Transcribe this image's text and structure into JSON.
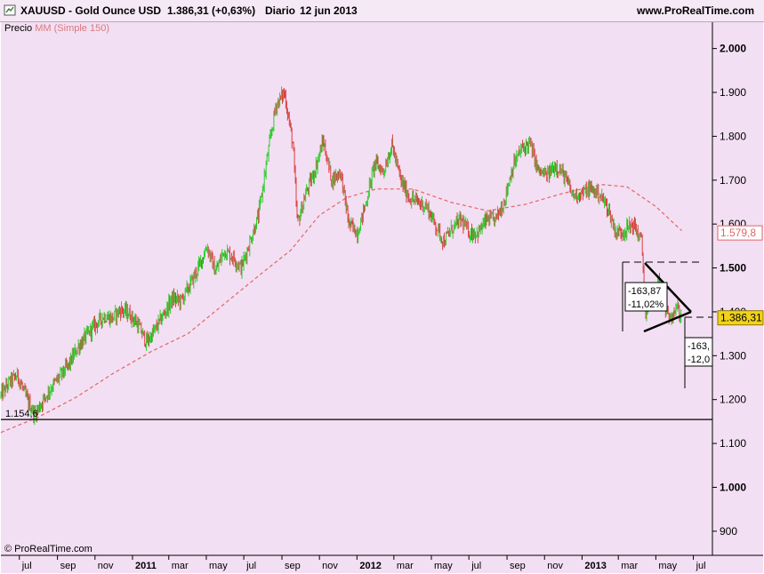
{
  "header": {
    "symbol_line": "XAUUSD - Gold Ounce USD",
    "price_change": "1.386,31 (+0,63%)",
    "period": "Diario",
    "date": "12 jun 2013",
    "site": "www.ProRealTime.com"
  },
  "legend": {
    "price_label": "Precio",
    "ma_label": "MM (Simple 150)"
  },
  "copyright": "© ProRealTime.com",
  "colors": {
    "background": "#f3dff3",
    "up_candle": "#2ecc2e",
    "down_candle": "#d94040",
    "moving_average": "#e06666",
    "price_badge": "#f2d21a",
    "ma_badge_text": "#e06666"
  },
  "chart_data": {
    "type": "line",
    "ylim": [
      845,
      2060
    ],
    "yticks": [
      {
        "value": 2000,
        "label": "2.000",
        "bold": true
      },
      {
        "value": 1900,
        "label": "1.900",
        "bold": false
      },
      {
        "value": 1800,
        "label": "1.800",
        "bold": false
      },
      {
        "value": 1700,
        "label": "1.700",
        "bold": false
      },
      {
        "value": 1600,
        "label": "1.600",
        "bold": false
      },
      {
        "value": 1500,
        "label": "1.500",
        "bold": true
      },
      {
        "value": 1400,
        "label": "1.400",
        "bold": false
      },
      {
        "value": 1300,
        "label": "1.300",
        "bold": false
      },
      {
        "value": 1200,
        "label": "1.200",
        "bold": false
      },
      {
        "value": 1100,
        "label": "1.100",
        "bold": false
      },
      {
        "value": 1000,
        "label": "1.000",
        "bold": true
      },
      {
        "value": 900,
        "label": "900",
        "bold": false
      }
    ],
    "xrange": [
      "2010-06-01",
      "2013-08-01"
    ],
    "xticks": [
      {
        "date": "2010-07-01",
        "label": "jul",
        "bold": false
      },
      {
        "date": "2010-09-01",
        "label": "sep",
        "bold": false
      },
      {
        "date": "2010-11-01",
        "label": "nov",
        "bold": false
      },
      {
        "date": "2011-01-01",
        "label": "2011",
        "bold": true
      },
      {
        "date": "2011-03-01",
        "label": "mar",
        "bold": false
      },
      {
        "date": "2011-05-01",
        "label": "may",
        "bold": false
      },
      {
        "date": "2011-07-01",
        "label": "jul",
        "bold": false
      },
      {
        "date": "2011-09-01",
        "label": "sep",
        "bold": false
      },
      {
        "date": "2011-11-01",
        "label": "nov",
        "bold": false
      },
      {
        "date": "2012-01-01",
        "label": "2012",
        "bold": true
      },
      {
        "date": "2012-03-01",
        "label": "mar",
        "bold": false
      },
      {
        "date": "2012-05-01",
        "label": "may",
        "bold": false
      },
      {
        "date": "2012-07-01",
        "label": "jul",
        "bold": false
      },
      {
        "date": "2012-09-01",
        "label": "sep",
        "bold": false
      },
      {
        "date": "2012-11-01",
        "label": "nov",
        "bold": false
      },
      {
        "date": "2013-01-01",
        "label": "2013",
        "bold": true
      },
      {
        "date": "2013-03-01",
        "label": "mar",
        "bold": false
      },
      {
        "date": "2013-05-01",
        "label": "may",
        "bold": false
      },
      {
        "date": "2013-07-01",
        "label": "jul",
        "bold": false
      }
    ],
    "series": [
      {
        "name": "Precio",
        "points": [
          [
            "2010-06-01",
            1210
          ],
          [
            "2010-06-15",
            1240
          ],
          [
            "2010-06-28",
            1255
          ],
          [
            "2010-07-12",
            1205
          ],
          [
            "2010-07-26",
            1165
          ],
          [
            "2010-08-09",
            1200
          ],
          [
            "2010-08-23",
            1230
          ],
          [
            "2010-09-06",
            1255
          ],
          [
            "2010-09-20",
            1280
          ],
          [
            "2010-10-04",
            1320
          ],
          [
            "2010-10-18",
            1345
          ],
          [
            "2010-11-01",
            1370
          ],
          [
            "2010-11-15",
            1390
          ],
          [
            "2010-11-29",
            1385
          ],
          [
            "2010-12-13",
            1405
          ],
          [
            "2010-12-27",
            1395
          ],
          [
            "2011-01-10",
            1370
          ],
          [
            "2011-01-24",
            1330
          ],
          [
            "2011-02-07",
            1360
          ],
          [
            "2011-02-21",
            1395
          ],
          [
            "2011-03-07",
            1430
          ],
          [
            "2011-03-21",
            1425
          ],
          [
            "2011-04-04",
            1460
          ],
          [
            "2011-04-18",
            1500
          ],
          [
            "2011-05-02",
            1550
          ],
          [
            "2011-05-16",
            1490
          ],
          [
            "2011-05-30",
            1540
          ],
          [
            "2011-06-13",
            1525
          ],
          [
            "2011-06-27",
            1500
          ],
          [
            "2011-07-11",
            1560
          ],
          [
            "2011-07-25",
            1620
          ],
          [
            "2011-08-08",
            1750
          ],
          [
            "2011-08-22",
            1870
          ],
          [
            "2011-09-05",
            1900
          ],
          [
            "2011-09-19",
            1780
          ],
          [
            "2011-09-26",
            1600
          ],
          [
            "2011-10-10",
            1670
          ],
          [
            "2011-10-24",
            1720
          ],
          [
            "2011-11-07",
            1790
          ],
          [
            "2011-11-21",
            1700
          ],
          [
            "2011-12-05",
            1720
          ],
          [
            "2011-12-19",
            1600
          ],
          [
            "2012-01-02",
            1580
          ],
          [
            "2012-01-16",
            1650
          ],
          [
            "2012-01-30",
            1740
          ],
          [
            "2012-02-13",
            1720
          ],
          [
            "2012-02-27",
            1780
          ],
          [
            "2012-03-12",
            1700
          ],
          [
            "2012-03-26",
            1660
          ],
          [
            "2012-04-09",
            1650
          ],
          [
            "2012-04-23",
            1640
          ],
          [
            "2012-05-07",
            1600
          ],
          [
            "2012-05-21",
            1560
          ],
          [
            "2012-06-04",
            1590
          ],
          [
            "2012-06-18",
            1610
          ],
          [
            "2012-07-02",
            1580
          ],
          [
            "2012-07-16",
            1580
          ],
          [
            "2012-07-30",
            1610
          ],
          [
            "2012-08-13",
            1610
          ],
          [
            "2012-08-27",
            1650
          ],
          [
            "2012-09-10",
            1730
          ],
          [
            "2012-09-24",
            1770
          ],
          [
            "2012-10-08",
            1785
          ],
          [
            "2012-10-22",
            1720
          ],
          [
            "2012-11-05",
            1710
          ],
          [
            "2012-11-19",
            1735
          ],
          [
            "2012-12-03",
            1710
          ],
          [
            "2012-12-17",
            1665
          ],
          [
            "2012-12-31",
            1670
          ],
          [
            "2013-01-14",
            1680
          ],
          [
            "2013-01-28",
            1670
          ],
          [
            "2013-02-11",
            1640
          ],
          [
            "2013-02-25",
            1580
          ],
          [
            "2013-03-11",
            1585
          ],
          [
            "2013-03-25",
            1600
          ],
          [
            "2013-04-08",
            1560
          ],
          [
            "2013-04-15",
            1380
          ],
          [
            "2013-04-22",
            1420
          ],
          [
            "2013-05-06",
            1470
          ],
          [
            "2013-05-20",
            1385
          ],
          [
            "2013-06-03",
            1410
          ],
          [
            "2013-06-12",
            1386
          ]
        ]
      },
      {
        "name": "MM (Simple 150)",
        "points": [
          [
            "2010-06-01",
            1125
          ],
          [
            "2010-08-01",
            1160
          ],
          [
            "2010-10-01",
            1205
          ],
          [
            "2010-12-01",
            1260
          ],
          [
            "2011-02-01",
            1310
          ],
          [
            "2011-04-01",
            1350
          ],
          [
            "2011-06-01",
            1420
          ],
          [
            "2011-08-01",
            1490
          ],
          [
            "2011-09-15",
            1540
          ],
          [
            "2011-11-01",
            1620
          ],
          [
            "2011-12-15",
            1660
          ],
          [
            "2012-02-01",
            1680
          ],
          [
            "2012-04-01",
            1680
          ],
          [
            "2012-06-01",
            1650
          ],
          [
            "2012-08-01",
            1630
          ],
          [
            "2012-10-01",
            1645
          ],
          [
            "2012-12-01",
            1670
          ],
          [
            "2013-02-01",
            1690
          ],
          [
            "2013-03-15",
            1685
          ],
          [
            "2013-05-01",
            1640
          ],
          [
            "2013-06-12",
            1585
          ]
        ]
      }
    ],
    "horizontal_lines": [
      {
        "value": 1154.6,
        "label": "1.154,6"
      }
    ],
    "price_badges": [
      {
        "value": 1579.8,
        "label": "1.579,8"
      },
      {
        "value": 1386.31,
        "label": "1.386,31"
      }
    ],
    "annotations": [
      {
        "lines": [
          "-163,87",
          "-11,02%"
        ]
      },
      {
        "lines": [
          "-163,",
          "-12,0"
        ]
      }
    ]
  }
}
